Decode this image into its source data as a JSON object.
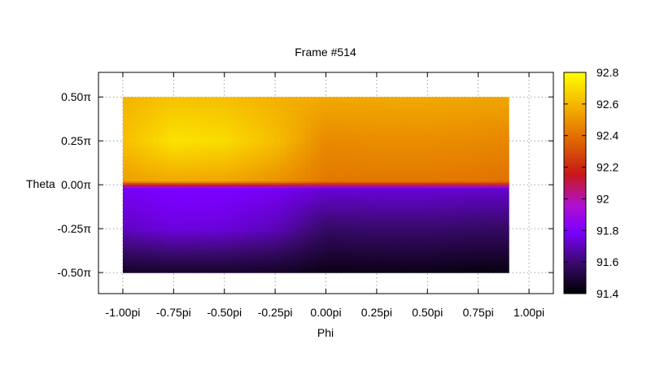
{
  "chart_data": {
    "type": "heatmap",
    "title": "Frame #514",
    "xlabel": "Phi",
    "ylabel": "Theta",
    "xlim": [
      -1.12,
      1.12
    ],
    "ylim": [
      -0.62,
      0.64
    ],
    "x_ticks": [
      {
        "value": -1.0,
        "label": "-1.00pi"
      },
      {
        "value": -0.75,
        "label": "-0.75pi"
      },
      {
        "value": -0.5,
        "label": "-0.50pi"
      },
      {
        "value": -0.25,
        "label": "-0.25pi"
      },
      {
        "value": 0.0,
        "label": "0.00pi"
      },
      {
        "value": 0.25,
        "label": "0.25pi"
      },
      {
        "value": 0.5,
        "label": "0.50pi"
      },
      {
        "value": 0.75,
        "label": "0.75pi"
      },
      {
        "value": 1.0,
        "label": "1.00pi"
      }
    ],
    "y_ticks": [
      {
        "value": 0.5,
        "label": "0.50π"
      },
      {
        "value": 0.25,
        "label": "0.25π"
      },
      {
        "value": 0.0,
        "label": "0.00π"
      },
      {
        "value": -0.25,
        "label": "-0.25π"
      },
      {
        "value": -0.5,
        "label": "-0.50π"
      }
    ],
    "grid": true,
    "data_extent": {
      "x": [
        -1.0,
        0.9
      ],
      "y": [
        -0.5,
        0.5
      ]
    },
    "colorbar": {
      "min": 91.4,
      "max": 92.8,
      "ticks": [
        {
          "value": 91.4,
          "label": "91.4"
        },
        {
          "value": 91.6,
          "label": "91.6"
        },
        {
          "value": 91.8,
          "label": "91.8"
        },
        {
          "value": 92.0,
          "label": "92"
        },
        {
          "value": 92.2,
          "label": "92.2"
        },
        {
          "value": 92.4,
          "label": "92.4"
        },
        {
          "value": 92.6,
          "label": "92.6"
        },
        {
          "value": 92.8,
          "label": "92.8"
        }
      ],
      "palette": "black-purple-red-orange-yellow"
    },
    "colors": {
      "c0": "#000000",
      "c1": "#3a0a6e",
      "c2": "#7b00ff",
      "c3": "#b010d0",
      "c4": "#c81818",
      "c5": "#e06a00",
      "c6": "#f4b400",
      "c7": "#ffff00"
    },
    "phi_samples": [
      -1.0,
      -0.75,
      -0.5,
      -0.25,
      0.0,
      0.25,
      0.5,
      0.75,
      0.9
    ],
    "theta_samples": [
      0.5,
      0.25,
      0.02,
      0.0,
      -0.02,
      -0.25,
      -0.5
    ],
    "values": [
      [
        92.59,
        92.63,
        92.62,
        92.58,
        92.56,
        92.56,
        92.56,
        92.55,
        92.55
      ],
      [
        92.62,
        92.72,
        92.7,
        92.62,
        92.47,
        92.48,
        92.48,
        92.47,
        92.46
      ],
      [
        92.53,
        92.56,
        92.55,
        92.5,
        92.42,
        92.42,
        92.42,
        92.41,
        92.4
      ],
      [
        92.2,
        92.22,
        92.21,
        92.2,
        92.18,
        92.18,
        92.18,
        92.18,
        92.18
      ],
      [
        91.78,
        91.8,
        91.8,
        91.78,
        91.74,
        91.74,
        91.74,
        91.73,
        91.73
      ],
      [
        91.71,
        91.75,
        91.74,
        91.7,
        91.58,
        91.59,
        91.59,
        91.58,
        91.58
      ],
      [
        91.47,
        91.48,
        91.48,
        91.47,
        91.44,
        91.44,
        91.44,
        91.43,
        91.43
      ]
    ]
  }
}
